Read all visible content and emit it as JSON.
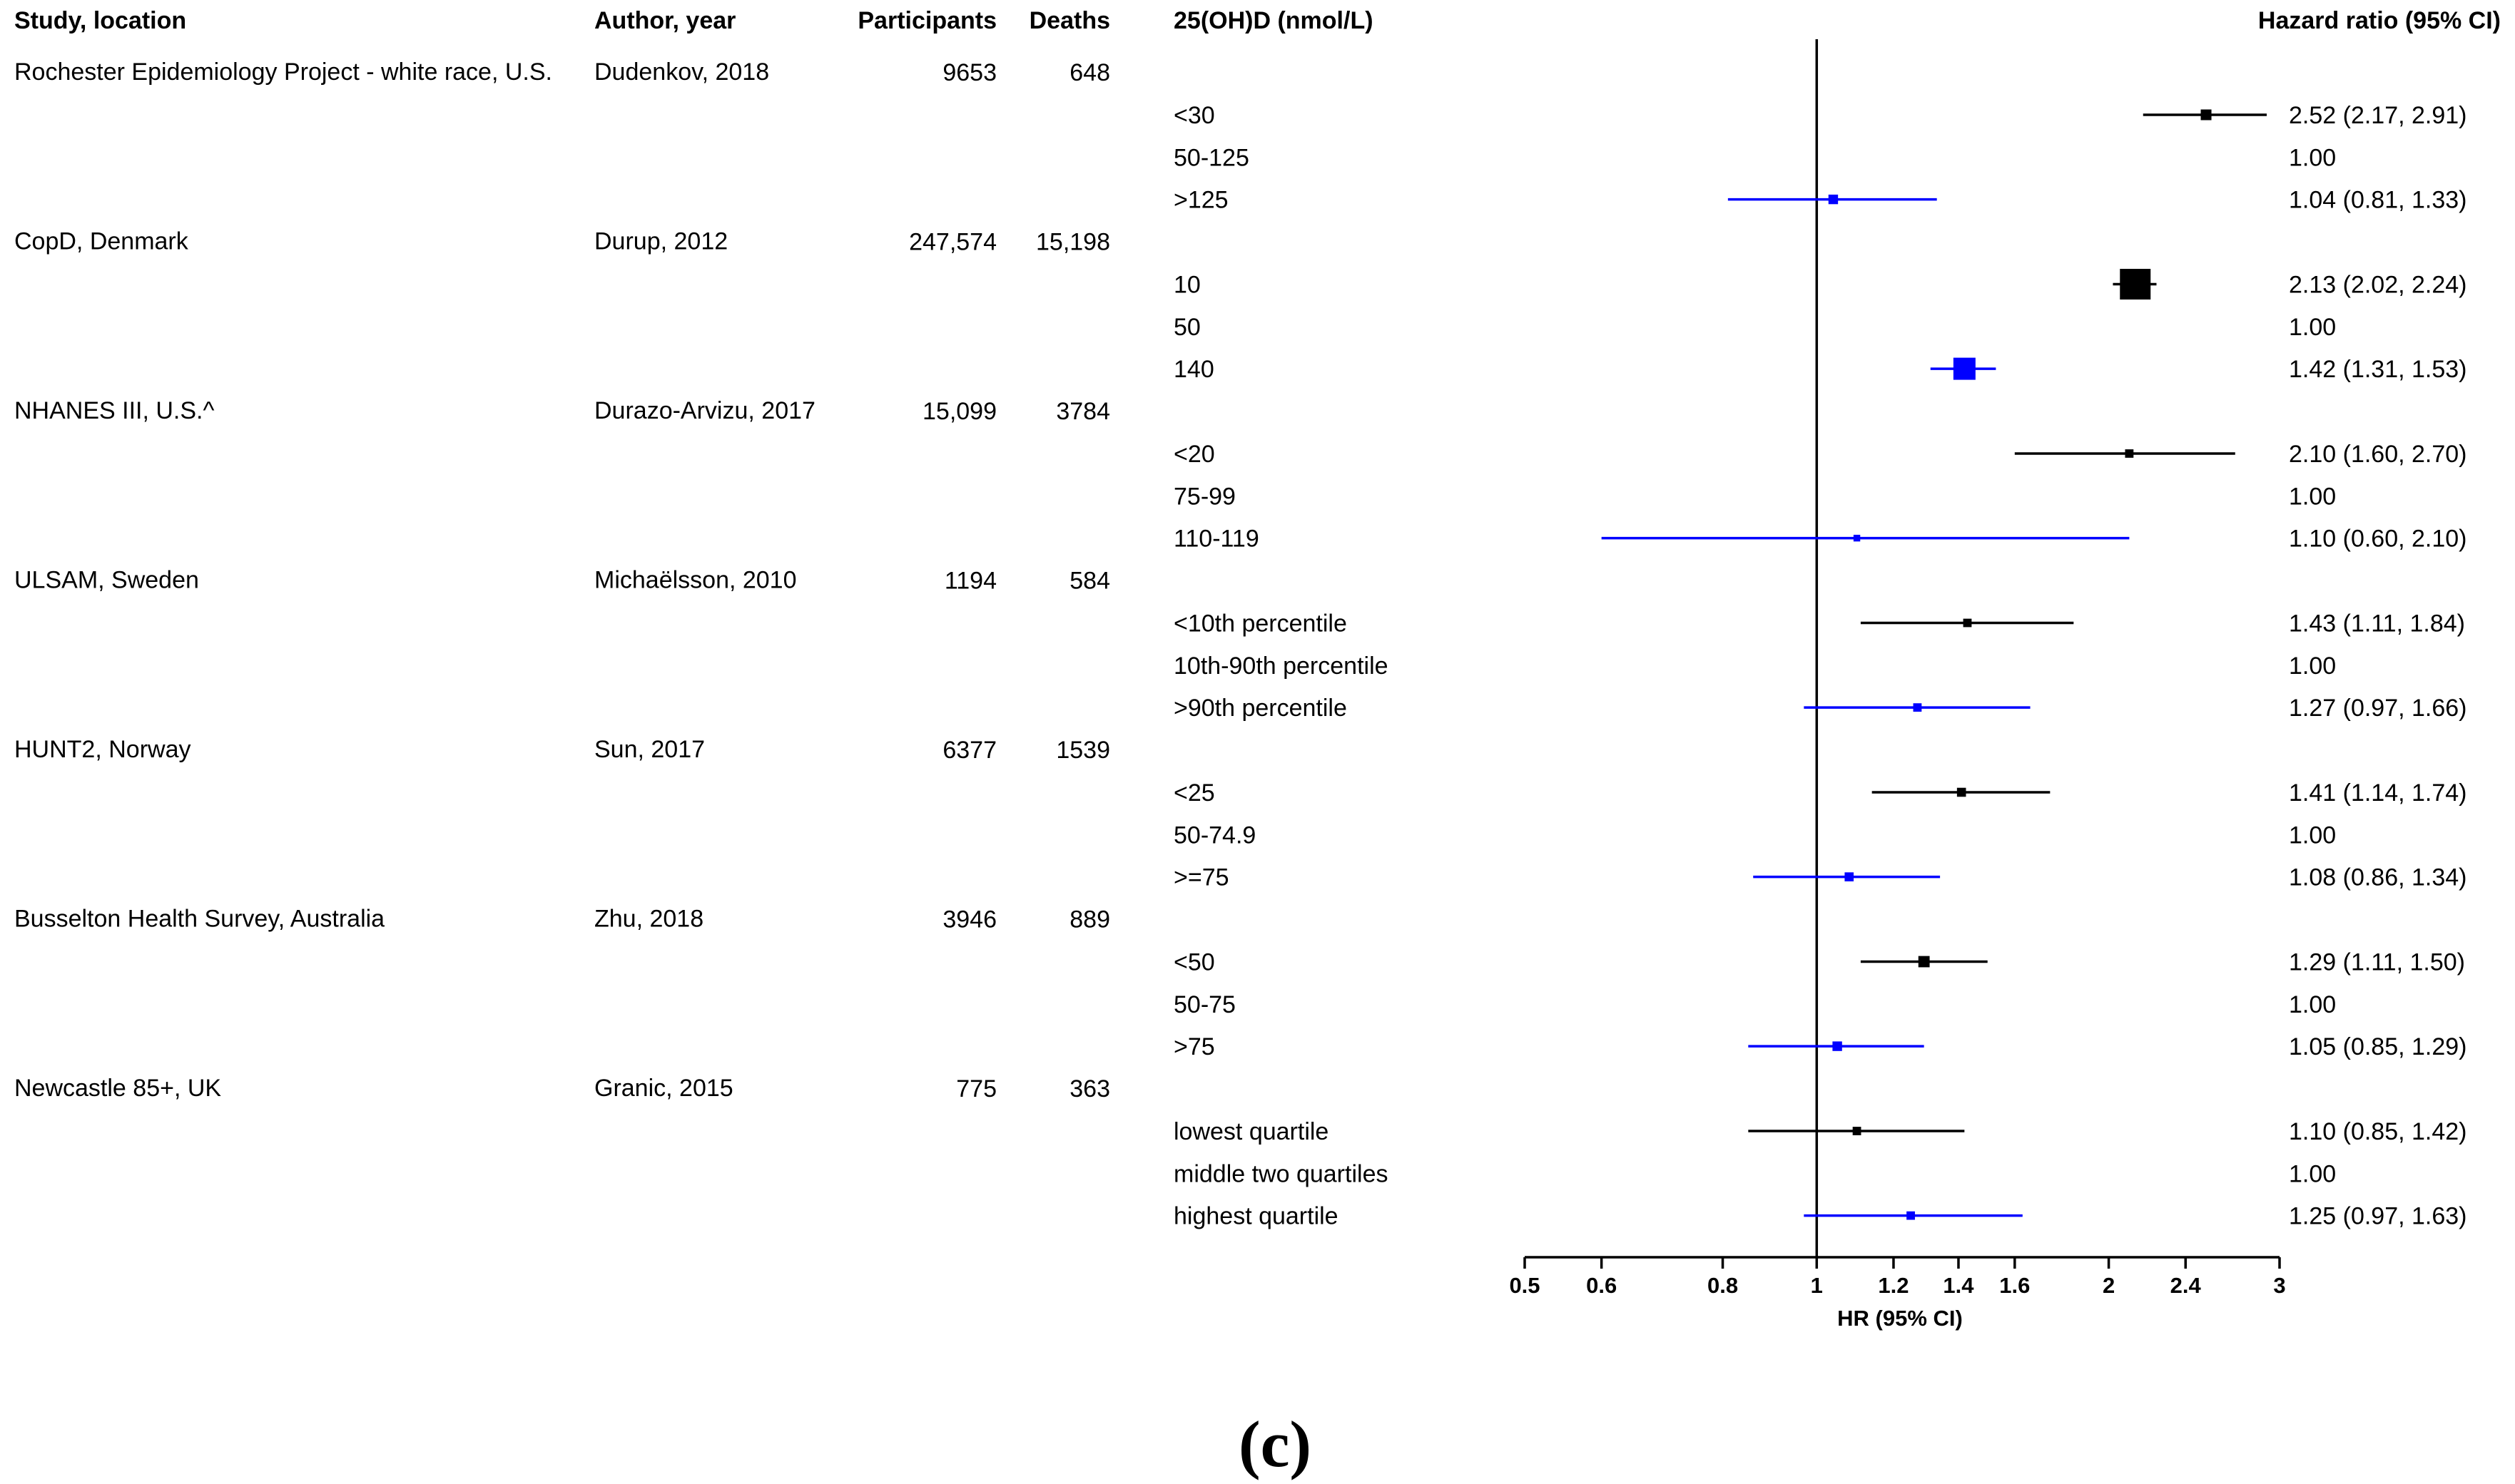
{
  "chart_data": {
    "type": "forest",
    "headers": {
      "study": "Study, location",
      "author": "Author, year",
      "participants": "Participants",
      "deaths": "Deaths",
      "level": "25(OH)D (nmol/L)",
      "hr": "Hazard ratio (95% CI)"
    },
    "studies": [
      {
        "study": "Rochester Epidemiology Project - white race, U.S.",
        "author": "Dudenkov, 2018",
        "participants": "9653",
        "deaths": "648",
        "rows": [
          {
            "level": "<30",
            "hr": 2.52,
            "lo": 2.17,
            "hi": 2.91,
            "label": "2.52 (2.17, 2.91)",
            "group": "low",
            "weight": 1
          },
          {
            "level": "50-125",
            "hr": 1.0,
            "label": "1.00",
            "group": "ref"
          },
          {
            "level": ">125",
            "hr": 1.04,
            "lo": 0.81,
            "hi": 1.33,
            "label": "1.04 (0.81, 1.33)",
            "group": "high",
            "weight": 0.8
          }
        ]
      },
      {
        "study": "CopD, Denmark",
        "author": "Durup, 2012",
        "participants": "247,574",
        "deaths": "15,198",
        "rows": [
          {
            "level": "10",
            "hr": 2.13,
            "lo": 2.02,
            "hi": 2.24,
            "label": "2.13 (2.02, 2.24)",
            "group": "low",
            "weight": 4.5
          },
          {
            "level": "50",
            "hr": 1.0,
            "label": "1.00",
            "group": "ref"
          },
          {
            "level": "140",
            "hr": 1.42,
            "lo": 1.31,
            "hi": 1.53,
            "label": "1.42 (1.31, 1.53)",
            "group": "high",
            "weight": 3
          }
        ]
      },
      {
        "study": "NHANES III, U.S.^",
        "author": "Durazo-Arvizu, 2017",
        "participants": "15,099",
        "deaths": "3784",
        "rows": [
          {
            "level": "<20",
            "hr": 2.1,
            "lo": 1.6,
            "hi": 2.7,
            "label": "2.10 (1.60, 2.70)",
            "group": "low",
            "weight": 0.6
          },
          {
            "level": "75-99",
            "hr": 1.0,
            "label": "1.00",
            "group": "ref"
          },
          {
            "level": "110-119",
            "hr": 1.1,
            "lo": 0.6,
            "hi": 2.1,
            "label": "1.10 (0.60, 2.10)",
            "group": "high",
            "weight": 0.3
          }
        ]
      },
      {
        "study": "ULSAM, Sweden",
        "author": "Michaëlsson, 2010",
        "participants": "1194",
        "deaths": "584",
        "rows": [
          {
            "level": "<10th percentile",
            "hr": 1.43,
            "lo": 1.11,
            "hi": 1.84,
            "label": "1.43 (1.11, 1.84)",
            "group": "low",
            "weight": 0.6
          },
          {
            "level": "10th-90th percentile",
            "hr": 1.0,
            "label": "1.00",
            "group": "ref"
          },
          {
            "level": ">90th percentile",
            "hr": 1.27,
            "lo": 0.97,
            "hi": 1.66,
            "label": "1.27 (0.97, 1.66)",
            "group": "high",
            "weight": 0.6
          }
        ]
      },
      {
        "study": "HUNT2, Norway",
        "author": "Sun, 2017",
        "participants": "6377",
        "deaths": "1539",
        "rows": [
          {
            "level": "<25",
            "hr": 1.41,
            "lo": 1.14,
            "hi": 1.74,
            "label": "1.41 (1.14, 1.74)",
            "group": "low",
            "weight": 0.7
          },
          {
            "level": "50-74.9",
            "hr": 1.0,
            "label": "1.00",
            "group": "ref"
          },
          {
            "level": ">=75",
            "hr": 1.08,
            "lo": 0.86,
            "hi": 1.34,
            "label": "1.08 (0.86, 1.34)",
            "group": "high",
            "weight": 0.7
          }
        ]
      },
      {
        "study": "Busselton Health Survey, Australia",
        "author": "Zhu, 2018",
        "participants": "3946",
        "deaths": "889",
        "rows": [
          {
            "level": "<50",
            "hr": 1.29,
            "lo": 1.11,
            "hi": 1.5,
            "label": "1.29 (1.11, 1.50)",
            "group": "low",
            "weight": 1.1
          },
          {
            "level": "50-75",
            "hr": 1.0,
            "label": "1.00",
            "group": "ref"
          },
          {
            "level": ">75",
            "hr": 1.05,
            "lo": 0.85,
            "hi": 1.29,
            "label": "1.05 (0.85, 1.29)",
            "group": "high",
            "weight": 0.8
          }
        ]
      },
      {
        "study": "Newcastle 85+, UK",
        "author": "Granic, 2015",
        "participants": "775",
        "deaths": "363",
        "rows": [
          {
            "level": "lowest quartile",
            "hr": 1.1,
            "lo": 0.85,
            "hi": 1.42,
            "label": "1.10 (0.85, 1.42)",
            "group": "low",
            "weight": 0.6
          },
          {
            "level": "middle two quartiles",
            "hr": 1.0,
            "label": "1.00",
            "group": "ref"
          },
          {
            "level": "highest quartile",
            "hr": 1.25,
            "lo": 0.97,
            "hi": 1.63,
            "label": "1.25 (0.97, 1.63)",
            "group": "high",
            "weight": 0.6
          }
        ]
      }
    ],
    "axis": {
      "scale": "log",
      "xlim": [
        0.5,
        3
      ],
      "ticks": [
        0.5,
        0.6,
        0.8,
        1,
        1.2,
        1.4,
        1.6,
        2,
        2.4,
        3
      ],
      "tick_labels": [
        "0.5",
        "0.6",
        "0.8",
        "1",
        "1.2",
        "1.4",
        "1.6",
        "2",
        "2.4",
        "3"
      ],
      "xlabel": "HR (95% CI)",
      "reference_line": 1
    },
    "colors": {
      "low": "#000000",
      "high": "#0000ff",
      "axis": "#000000"
    }
  },
  "caption": "(c)"
}
